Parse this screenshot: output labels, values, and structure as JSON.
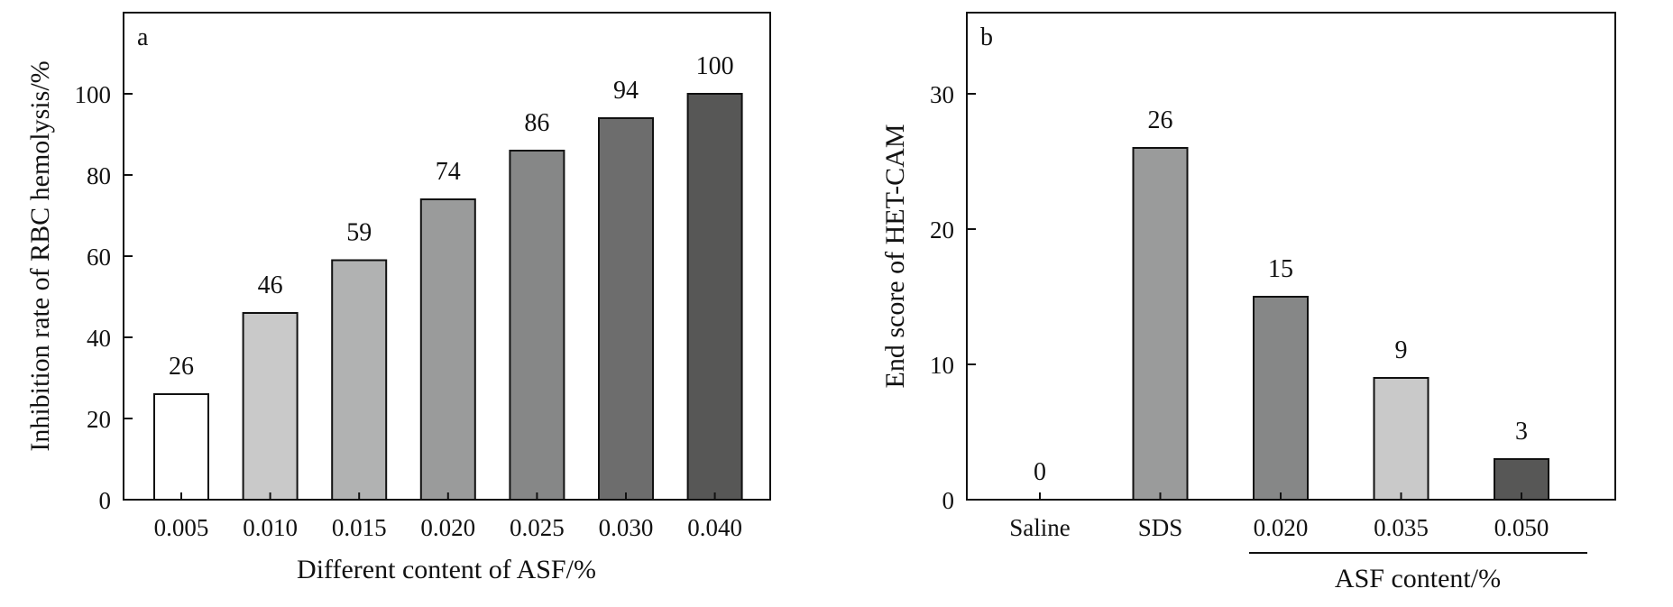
{
  "chart_data": [
    {
      "type": "bar",
      "panel_label": "a",
      "categories": [
        "0.005",
        "0.010",
        "0.015",
        "0.020",
        "0.025",
        "0.030",
        "0.040"
      ],
      "values": [
        26,
        46,
        59,
        74,
        86,
        94,
        100
      ],
      "data_labels": [
        "26",
        "46",
        "59",
        "74",
        "86",
        "94",
        "100"
      ],
      "bar_colors": [
        "#ffffff",
        "#c9c9c9",
        "#b1b2b2",
        "#9a9b9b",
        "#868787",
        "#6d6d6d",
        "#575756"
      ],
      "xlabel": "Different content of ASF/%",
      "ylabel": "Inhibition rate of RBC hemolysis/%",
      "ylim": [
        0,
        120
      ],
      "yticks": [
        "0",
        "20",
        "40",
        "60",
        "80",
        "100"
      ],
      "ytick_values": [
        0,
        20,
        40,
        60,
        80,
        100
      ],
      "grid": false
    },
    {
      "type": "bar",
      "panel_label": "b",
      "categories": [
        "Saline",
        "SDS",
        "0.020",
        "0.035",
        "0.050"
      ],
      "values": [
        0,
        26,
        15,
        9,
        3
      ],
      "data_labels": [
        "0",
        "26",
        "15",
        "9",
        "3"
      ],
      "bar_colors": [
        "#ffffff",
        "#9a9b9b",
        "#868787",
        "#c9c9c9",
        "#575756"
      ],
      "xlabel": "ASF content/%",
      "ylabel": "End score of HET-CAM",
      "ylim": [
        0,
        36
      ],
      "yticks": [
        "0",
        "10",
        "20",
        "30"
      ],
      "ytick_values": [
        0,
        10,
        20,
        30
      ],
      "grid": false
    }
  ]
}
